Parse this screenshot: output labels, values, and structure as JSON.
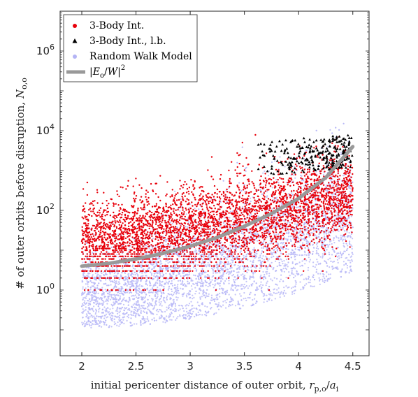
{
  "chart_data": {
    "type": "scatter",
    "xlabel": "initial pericenter distance of outer orbit, r_p,o/a_i",
    "xlabel_parts": {
      "text": "initial pericenter distance of outer orbit, ",
      "var": "r",
      "sub": "p,o",
      "div": "/",
      "var2": "a",
      "sub2": "i"
    },
    "ylabel": "# of outer orbits before disruption, N_o,o",
    "ylabel_parts": {
      "text": "# of outer orbits before disruption, ",
      "var": "N",
      "sub": "o,o"
    },
    "x_range": [
      1.8,
      4.65
    ],
    "y_range_log10": [
      -1.65,
      7.0
    ],
    "y_scale": "log",
    "x_ticks": [
      2,
      2.5,
      3,
      3.5,
      4,
      4.5
    ],
    "x_tick_labels": [
      "2",
      "2.5",
      "3",
      "3.5",
      "4",
      "4.5"
    ],
    "y_ticks_log10": [
      0,
      2,
      4,
      6
    ],
    "y_tick_labels": [
      {
        "base": "10",
        "exp": "0"
      },
      {
        "base": "10",
        "exp": "2"
      },
      {
        "base": "10",
        "exp": "4"
      },
      {
        "base": "10",
        "exp": "6"
      }
    ],
    "grid": false,
    "legend_position": "top-left",
    "colors": {
      "three_body": "#e8000b",
      "lower_bound": "#000000",
      "random_walk": "#8c8cf0",
      "model_curve": "#999999"
    },
    "series": [
      {
        "name": "3-Body Int.",
        "kind": "scatter",
        "marker": "dot",
        "approx_model": "log10 N ~ 0.45*(x-2)^1.6 + 1.2 with scatter sd 0.6; quantized near integers at low N",
        "x_range": [
          2.0,
          4.5
        ]
      },
      {
        "name": "3-Body Int., l.b.",
        "kind": "scatter",
        "marker": "triangle",
        "approx_model": "concentrated x 3.7-4.5, log10 N between 2.8 and 4.0",
        "x_range": [
          3.6,
          4.5
        ]
      },
      {
        "name": "Random Walk Model",
        "kind": "scatter",
        "marker": "dot",
        "approx_model": "broad band from log10 N ~ -0.6 at x=2 to ~4.7 at x=4.5",
        "x_range": [
          2.0,
          4.5
        ]
      },
      {
        "name": "|E_o/W|^2",
        "kind": "line",
        "x": [
          2.0,
          2.25,
          2.5,
          2.75,
          3.0,
          3.25,
          3.5,
          3.75,
          4.0,
          4.25,
          4.5
        ],
        "y_log10": [
          0.6,
          0.67,
          0.78,
          0.92,
          1.1,
          1.32,
          1.6,
          1.92,
          2.3,
          2.82,
          3.6
        ]
      }
    ],
    "legend_entries": [
      {
        "label": "3-Body Int.",
        "marker": "dot",
        "color": "#e8000b"
      },
      {
        "label": "3-Body Int., l.b.",
        "marker": "triangle",
        "color": "#000000"
      },
      {
        "label": "Random Walk Model",
        "marker": "dot",
        "color": "#b4b4f5"
      },
      {
        "label": "|E_o/W|^2",
        "marker": "line",
        "color": "#999999"
      }
    ]
  }
}
